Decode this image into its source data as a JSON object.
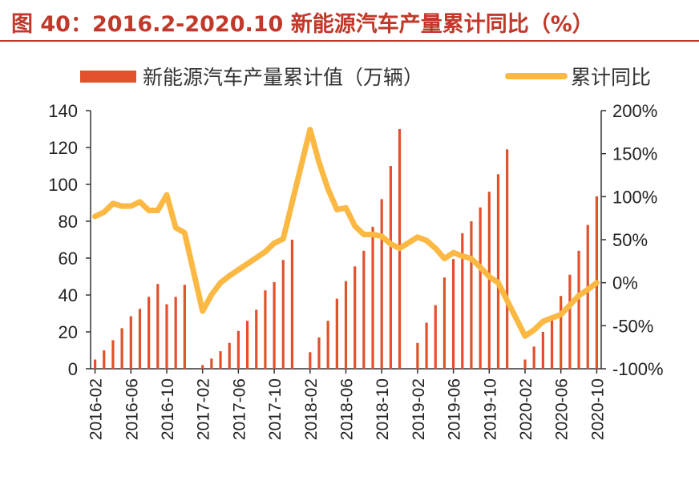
{
  "title": "图 40：2016.2-2020.10 新能源汽车产量累计同比（%）",
  "colors": {
    "bar": "#e2502c",
    "line": "#fbb843",
    "title": "#c0392b"
  },
  "chart_data": {
    "type": "bar+line",
    "title": "图 40：2016.2-2020.10 新能源汽车产量累计同比（%）",
    "legend_position": "top",
    "grid": false,
    "x": [
      "2016-02",
      "2016-03",
      "2016-04",
      "2016-05",
      "2016-06",
      "2016-07",
      "2016-08",
      "2016-09",
      "2016-10",
      "2016-11",
      "2016-12",
      "2017-01",
      "2017-02",
      "2017-03",
      "2017-04",
      "2017-05",
      "2017-06",
      "2017-07",
      "2017-08",
      "2017-09",
      "2017-10",
      "2017-11",
      "2017-12",
      "2018-01",
      "2018-02",
      "2018-03",
      "2018-04",
      "2018-05",
      "2018-06",
      "2018-07",
      "2018-08",
      "2018-09",
      "2018-10",
      "2018-11",
      "2018-12",
      "2019-01",
      "2019-02",
      "2019-03",
      "2019-04",
      "2019-05",
      "2019-06",
      "2019-07",
      "2019-08",
      "2019-09",
      "2019-10",
      "2019-11",
      "2019-12",
      "2020-01",
      "2020-02",
      "2020-03",
      "2020-04",
      "2020-05",
      "2020-06",
      "2020-07",
      "2020-08",
      "2020-09",
      "2020-10"
    ],
    "x_tick_labels": [
      "2016-02",
      "2016-06",
      "2016-10",
      "2017-02",
      "2017-06",
      "2017-10",
      "2018-02",
      "2018-06",
      "2018-10",
      "2019-02",
      "2019-06",
      "2019-10",
      "2020-02",
      "2020-06",
      "2020-10"
    ],
    "y_left": {
      "min": 0,
      "max": 140,
      "ticks": [
        0,
        20,
        40,
        60,
        80,
        100,
        120,
        140
      ]
    },
    "y_right": {
      "min": -100,
      "max": 200,
      "ticks": [
        "-100%",
        "-50%",
        "0%",
        "50%",
        "100%",
        "150%",
        "200%"
      ],
      "tick_values": [
        -100,
        -50,
        0,
        50,
        100,
        150,
        200
      ]
    },
    "series": [
      {
        "name": "新能源汽车产量累计值（万辆）",
        "type": "bar",
        "axis": "left",
        "values": [
          5,
          10,
          15.5,
          22,
          28.5,
          32.5,
          39,
          46,
          35,
          39,
          45.5,
          null,
          2,
          5.5,
          9.5,
          14,
          20.5,
          26,
          32,
          42.5,
          47,
          59,
          70,
          null,
          9,
          17,
          26,
          38,
          47.5,
          55.5,
          64,
          77,
          92,
          110,
          130,
          null,
          14,
          25,
          34.5,
          49.5,
          59.5,
          73.5,
          80,
          87.5,
          96,
          105.5,
          119,
          null,
          5,
          12,
          20,
          29,
          39.5,
          51,
          64,
          78,
          93.5
        ]
      },
      {
        "name": "累计同比",
        "type": "line",
        "axis": "right",
        "values": [
          77,
          82,
          92,
          89,
          89,
          94,
          84,
          84,
          102,
          64,
          58,
          null,
          -33,
          -14,
          0,
          8,
          15,
          22,
          29,
          36,
          46,
          51,
          null,
          null,
          178,
          140,
          109,
          85,
          87,
          66,
          56,
          56,
          54,
          45,
          40,
          null,
          53,
          49,
          40,
          28,
          35,
          31,
          28,
          18,
          7,
          0,
          null,
          null,
          -62,
          -55,
          -45,
          -41,
          -37,
          -26,
          -15,
          -8,
          0
        ]
      }
    ]
  }
}
